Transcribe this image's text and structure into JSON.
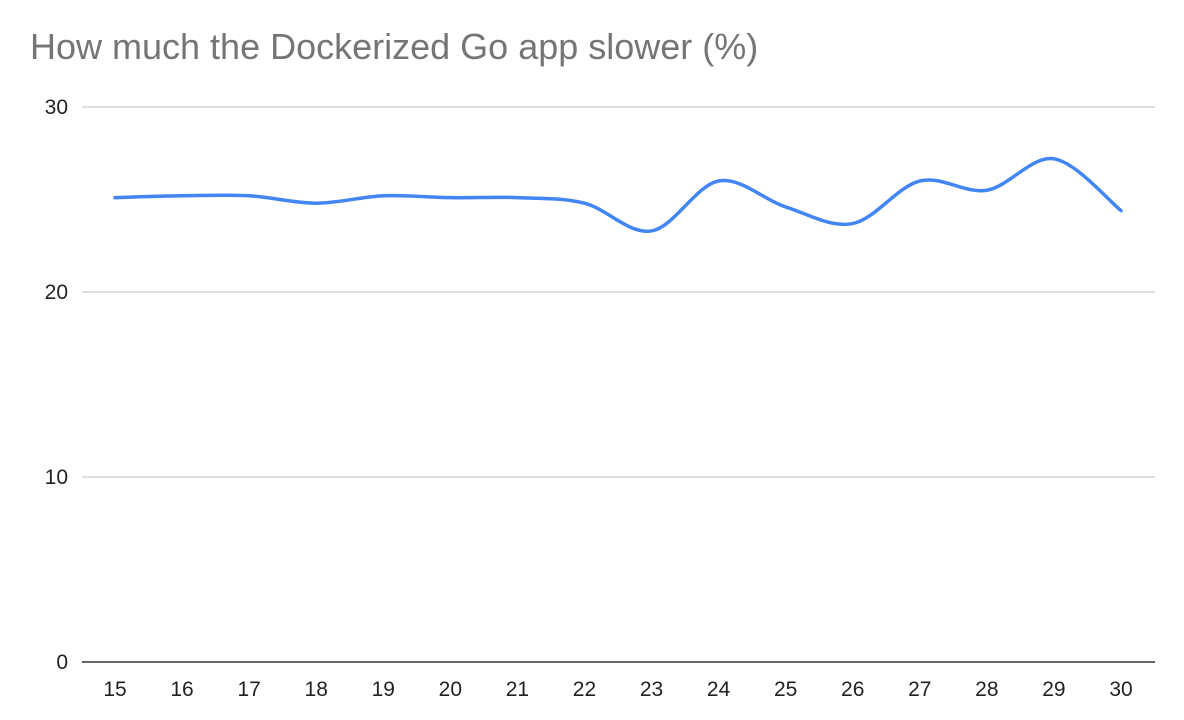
{
  "chart_data": {
    "type": "line",
    "title": "How much the Dockerized Go app slower (%)",
    "xlabel": "",
    "ylabel": "",
    "x": [
      15,
      16,
      17,
      18,
      19,
      20,
      21,
      22,
      23,
      24,
      25,
      26,
      27,
      28,
      29,
      30
    ],
    "series": [
      {
        "values": [
          25.1,
          25.2,
          25.2,
          24.8,
          25.2,
          25.1,
          25.1,
          24.8,
          23.3,
          26.0,
          24.6,
          23.7,
          26.0,
          25.5,
          27.2,
          24.4
        ]
      }
    ],
    "ylim": [
      0,
      30
    ],
    "yticks": [
      0,
      10,
      20,
      30
    ],
    "grid": true,
    "legend": "none",
    "line_color": "#4285f4",
    "gridline_color": "#cccccc",
    "axis_color": "#333333"
  }
}
